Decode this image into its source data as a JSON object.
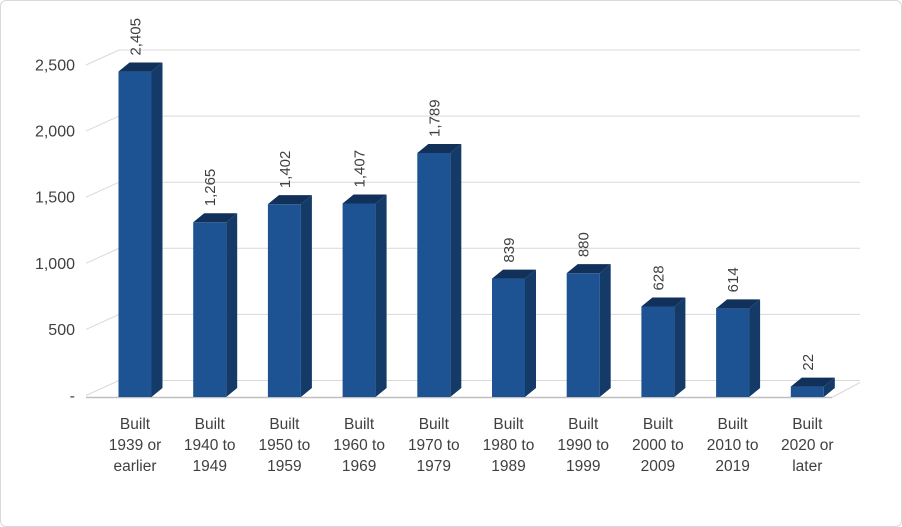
{
  "chart_data": {
    "type": "bar",
    "style": "3d-column",
    "title": "",
    "legend": false,
    "grid": true,
    "ylim": [
      0,
      2500
    ],
    "y_ticks": [
      {
        "value": 0,
        "label": "-"
      },
      {
        "value": 500,
        "label": "500"
      },
      {
        "value": 1000,
        "label": "1,000"
      },
      {
        "value": 1500,
        "label": "1,500"
      },
      {
        "value": 2000,
        "label": "2,000"
      },
      {
        "value": 2500,
        "label": "2,500"
      }
    ],
    "categories": [
      "Built 1939 or earlier",
      "Built 1940 to 1949",
      "Built 1950 to 1959",
      "Built 1960 to 1969",
      "Built 1970 to 1979",
      "Built 1980 to 1989",
      "Built 1990 to 1999",
      "Built 2000 to 2009",
      "Built 2010 to 2019",
      "Built 2020 or later"
    ],
    "category_lines": [
      [
        "Built",
        "1939 or",
        "earlier"
      ],
      [
        "Built",
        "1940 to",
        "1949"
      ],
      [
        "Built",
        "1950 to",
        "1959"
      ],
      [
        "Built",
        "1960 to",
        "1969"
      ],
      [
        "Built",
        "1970 to",
        "1979"
      ],
      [
        "Built",
        "1980 to",
        "1989"
      ],
      [
        "Built",
        "1990 to",
        "1999"
      ],
      [
        "Built",
        "2000 to",
        "2009"
      ],
      [
        "Built",
        "2010 to",
        "2019"
      ],
      [
        "Built",
        "2020 or",
        "later"
      ]
    ],
    "values": [
      2405,
      1265,
      1402,
      1407,
      1789,
      839,
      880,
      628,
      614,
      22
    ],
    "value_labels": [
      "2,405",
      "1,265",
      "1,402",
      "1,407",
      "1,789",
      "839",
      "880",
      "628",
      "614",
      "22"
    ],
    "colors": {
      "bar_front": "#1D5392",
      "bar_side": "#143A68",
      "bar_top": "#12315A",
      "gridline": "#D9D9D9",
      "axis_line": "#BFBFBF",
      "text": "#404040",
      "background": "#FFFFFF",
      "frame_border": "#D9D9D9"
    }
  }
}
